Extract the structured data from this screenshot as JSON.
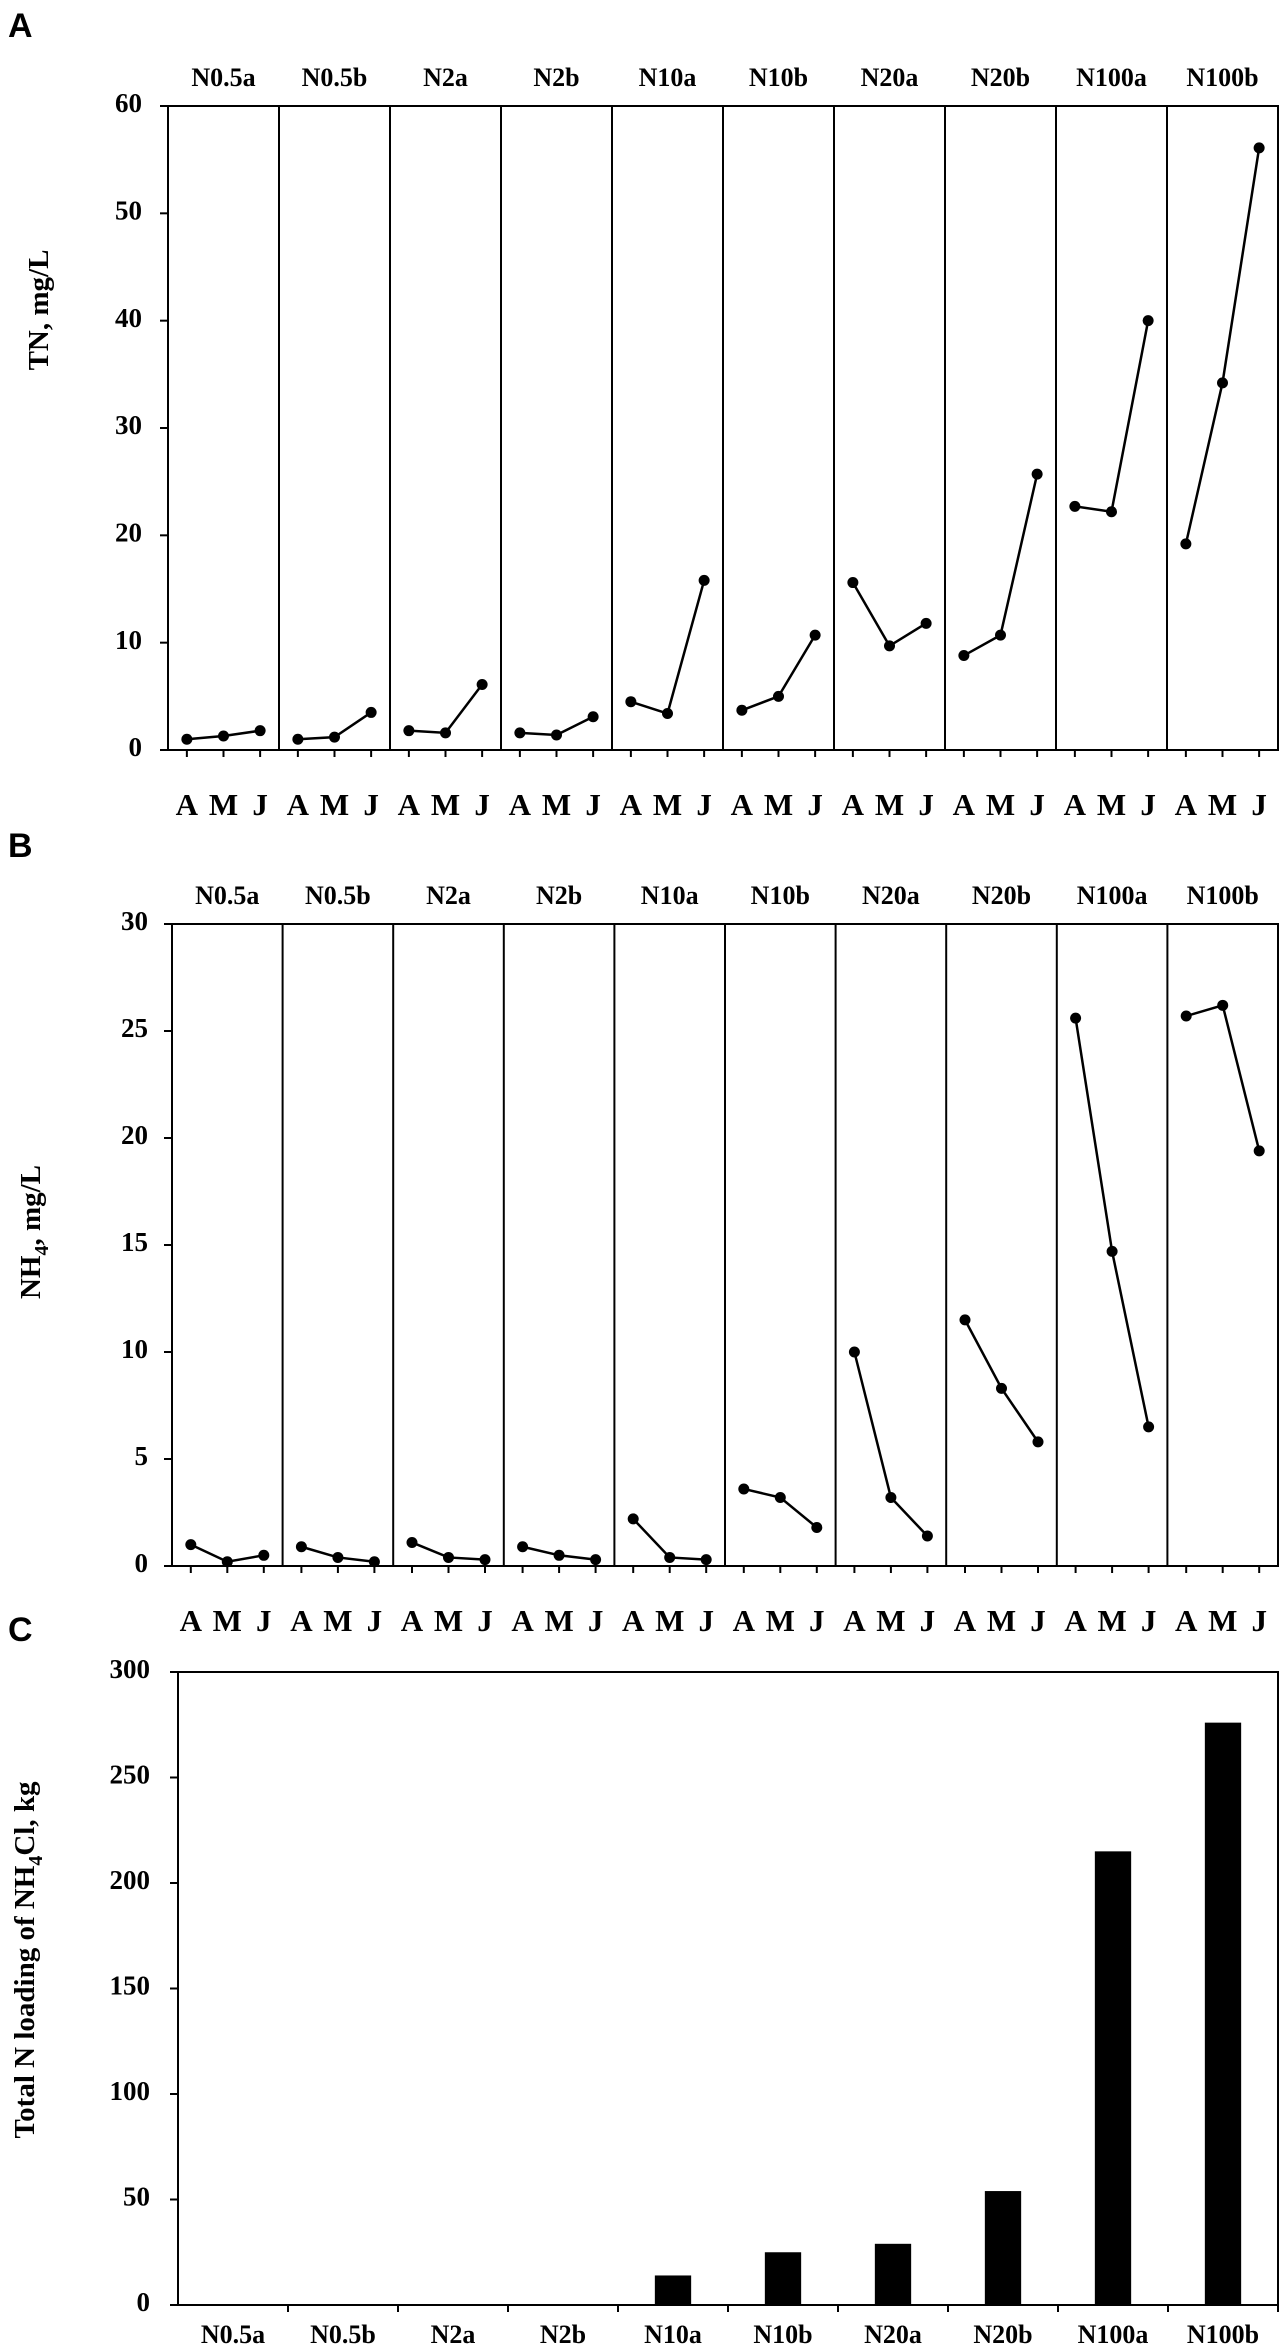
{
  "panels": [
    {
      "letter": "A",
      "type": "line",
      "ylabel": "TN, mg/L",
      "ylim": [
        0,
        60
      ],
      "yticks": [
        0,
        10,
        20,
        30,
        40,
        50,
        60
      ],
      "months": [
        "A",
        "M",
        "J"
      ],
      "groups": [
        {
          "name": "N0.5a",
          "values": [
            1.0,
            1.3,
            1.8
          ]
        },
        {
          "name": "N0.5b",
          "values": [
            1.0,
            1.2,
            3.5
          ]
        },
        {
          "name": "N2a",
          "values": [
            1.8,
            1.6,
            6.1
          ]
        },
        {
          "name": "N2b",
          "values": [
            1.6,
            1.4,
            3.1
          ]
        },
        {
          "name": "N10a",
          "values": [
            4.5,
            3.4,
            15.8
          ]
        },
        {
          "name": "N10b",
          "values": [
            3.7,
            5.0,
            10.7
          ]
        },
        {
          "name": "N20a",
          "values": [
            15.6,
            9.7,
            11.8
          ]
        },
        {
          "name": "N20b",
          "values": [
            8.8,
            10.7,
            25.7
          ]
        },
        {
          "name": "N100a",
          "values": [
            22.7,
            22.2,
            40.0
          ]
        },
        {
          "name": "N100b",
          "values": [
            19.2,
            34.2,
            56.1
          ]
        }
      ]
    },
    {
      "letter": "B",
      "type": "line",
      "ylabel_main": "NH",
      "ylabel_sub": "4",
      "ylabel_tail": ", mg/L",
      "ylim": [
        0,
        30
      ],
      "yticks": [
        0,
        5,
        10,
        15,
        20,
        25,
        30
      ],
      "months": [
        "A",
        "M",
        "J"
      ],
      "groups": [
        {
          "name": "N0.5a",
          "values": [
            1.0,
            0.2,
            0.5
          ]
        },
        {
          "name": "N0.5b",
          "values": [
            0.9,
            0.4,
            0.2
          ]
        },
        {
          "name": "N2a",
          "values": [
            1.1,
            0.4,
            0.3
          ]
        },
        {
          "name": "N2b",
          "values": [
            0.9,
            0.5,
            0.3
          ]
        },
        {
          "name": "N10a",
          "values": [
            2.2,
            0.4,
            0.3
          ]
        },
        {
          "name": "N10b",
          "values": [
            3.6,
            3.2,
            1.8
          ]
        },
        {
          "name": "N20a",
          "values": [
            10.0,
            3.2,
            1.4
          ]
        },
        {
          "name": "N20b",
          "values": [
            11.5,
            8.3,
            5.8
          ]
        },
        {
          "name": "N100a",
          "values": [
            25.6,
            14.7,
            6.5
          ]
        },
        {
          "name": "N100b",
          "values": [
            25.7,
            26.2,
            19.4
          ]
        }
      ]
    },
    {
      "letter": "C",
      "type": "bar",
      "ylabel_main": "Total N loading of NH",
      "ylabel_sub": "4",
      "ylabel_tail": "Cl, kg",
      "ylim": [
        0,
        300
      ],
      "yticks": [
        0,
        50,
        100,
        150,
        200,
        250,
        300
      ],
      "categories": [
        "N0.5a",
        "N0.5b",
        "N2a",
        "N2b",
        "N10a",
        "N10b",
        "N20a",
        "N20b",
        "N100a",
        "N100b"
      ],
      "values": [
        0,
        0,
        0,
        0,
        14,
        25,
        29,
        54,
        215,
        276
      ],
      "bar_color": "#000000"
    }
  ],
  "chart_data": [
    {
      "type": "line",
      "ylabel": "TN, mg/L",
      "ylim": [
        0,
        60
      ],
      "x": [
        "A",
        "M",
        "J"
      ],
      "series": [
        {
          "name": "N0.5a",
          "values": [
            1.0,
            1.3,
            1.8
          ]
        },
        {
          "name": "N0.5b",
          "values": [
            1.0,
            1.2,
            3.5
          ]
        },
        {
          "name": "N2a",
          "values": [
            1.8,
            1.6,
            6.1
          ]
        },
        {
          "name": "N2b",
          "values": [
            1.6,
            1.4,
            3.1
          ]
        },
        {
          "name": "N10a",
          "values": [
            4.5,
            3.4,
            15.8
          ]
        },
        {
          "name": "N10b",
          "values": [
            3.7,
            5.0,
            10.7
          ]
        },
        {
          "name": "N20a",
          "values": [
            15.6,
            9.7,
            11.8
          ]
        },
        {
          "name": "N20b",
          "values": [
            8.8,
            10.7,
            25.7
          ]
        },
        {
          "name": "N100a",
          "values": [
            22.7,
            22.2,
            40.0
          ]
        },
        {
          "name": "N100b",
          "values": [
            19.2,
            34.2,
            56.1
          ]
        }
      ]
    },
    {
      "type": "line",
      "ylabel": "NH4, mg/L",
      "ylim": [
        0,
        30
      ],
      "x": [
        "A",
        "M",
        "J"
      ],
      "series": [
        {
          "name": "N0.5a",
          "values": [
            1.0,
            0.2,
            0.5
          ]
        },
        {
          "name": "N0.5b",
          "values": [
            0.9,
            0.4,
            0.2
          ]
        },
        {
          "name": "N2a",
          "values": [
            1.1,
            0.4,
            0.3
          ]
        },
        {
          "name": "N2b",
          "values": [
            0.9,
            0.5,
            0.3
          ]
        },
        {
          "name": "N10a",
          "values": [
            2.2,
            0.4,
            0.3
          ]
        },
        {
          "name": "N10b",
          "values": [
            3.6,
            3.2,
            1.8
          ]
        },
        {
          "name": "N20a",
          "values": [
            10.0,
            3.2,
            1.4
          ]
        },
        {
          "name": "N20b",
          "values": [
            11.5,
            8.3,
            5.8
          ]
        },
        {
          "name": "N100a",
          "values": [
            25.6,
            14.7,
            6.5
          ]
        },
        {
          "name": "N100b",
          "values": [
            25.7,
            26.2,
            19.4
          ]
        }
      ]
    },
    {
      "type": "bar",
      "ylabel": "Total N loading of NH4Cl, kg",
      "ylim": [
        0,
        300
      ],
      "categories": [
        "N0.5a",
        "N0.5b",
        "N2a",
        "N2b",
        "N10a",
        "N10b",
        "N20a",
        "N20b",
        "N100a",
        "N100b"
      ],
      "values": [
        0,
        0,
        0,
        0,
        14,
        25,
        29,
        54,
        215,
        276
      ]
    }
  ]
}
